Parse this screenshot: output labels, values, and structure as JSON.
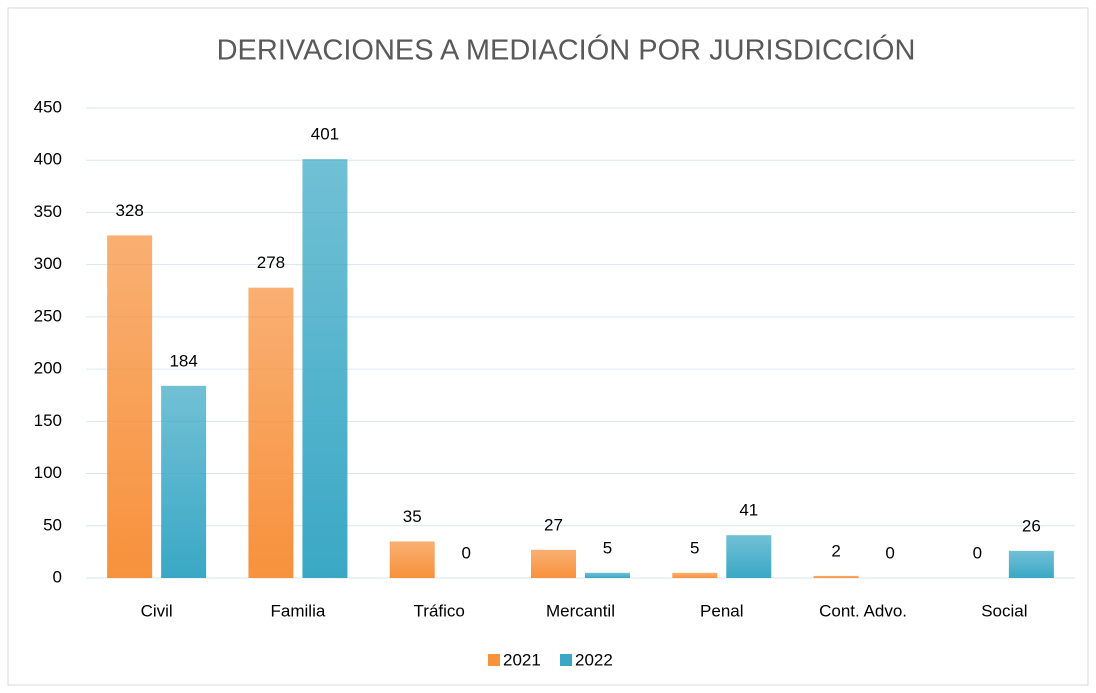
{
  "chart_data": {
    "type": "bar",
    "title": "DERIVACIONES A MEDIACIÓN POR JURISDICCIÓN",
    "categories": [
      "Civil",
      "Familia",
      "Tráfico",
      "Mercantil",
      "Penal",
      "Cont. Advo.",
      "Social"
    ],
    "series": [
      {
        "name": "2021",
        "color": "#f7913c",
        "values": [
          328,
          278,
          35,
          27,
          5,
          2,
          0
        ]
      },
      {
        "name": "2022",
        "color": "#3aa8c5",
        "values": [
          184,
          401,
          0,
          5,
          41,
          0,
          26
        ]
      }
    ],
    "ylim": [
      0,
      450
    ],
    "yticks": [
      0,
      50,
      100,
      150,
      200,
      250,
      300,
      350,
      400,
      450
    ],
    "grid": true,
    "legend": "bottom"
  }
}
